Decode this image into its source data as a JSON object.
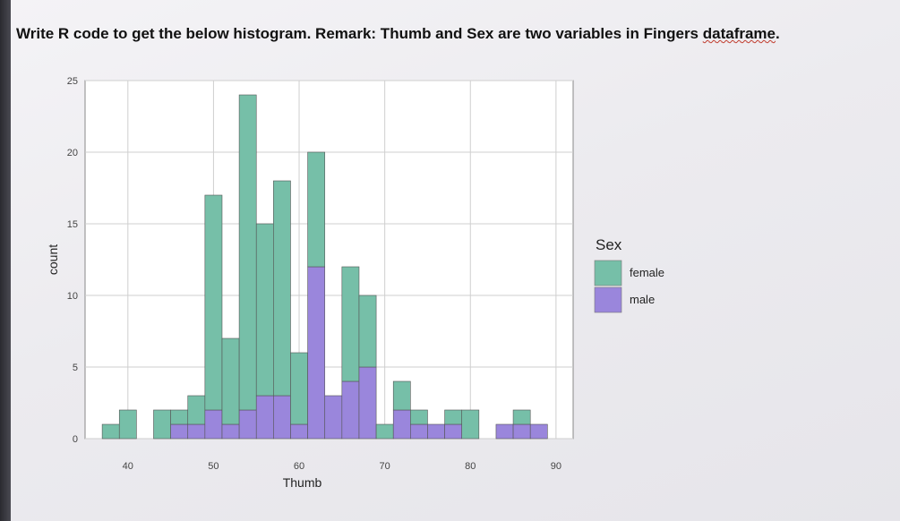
{
  "question": {
    "text_before": "Write R code to get the below histogram. Remark: Thumb and Sex are two variables in Fingers ",
    "text_flagged": "dataframe",
    "text_after": "."
  },
  "colors": {
    "female": "#76bfa8",
    "male": "#9a86dc",
    "panel": "#ffffff",
    "grid": "#cfcfcf"
  },
  "chart_data": {
    "type": "bar",
    "stacked": true,
    "xlabel": "Thumb",
    "ylabel": "count",
    "xlim": [
      35,
      92
    ],
    "ylim": [
      0,
      25
    ],
    "x_ticks": [
      40,
      50,
      60,
      70,
      80,
      90
    ],
    "y_ticks": [
      0,
      5,
      10,
      15,
      20,
      25
    ],
    "bin_width": 2,
    "bins": [
      38,
      40,
      44,
      46,
      48,
      50,
      52,
      54,
      56,
      58,
      60,
      62,
      64,
      66,
      68,
      70,
      72,
      74,
      76,
      78,
      80,
      84,
      86,
      88
    ],
    "series": [
      {
        "name": "female",
        "values": [
          1,
          2,
          2,
          1,
          2,
          15,
          6,
          22,
          12,
          15,
          5,
          8,
          0,
          8,
          5,
          1,
          2,
          1,
          0,
          1,
          2,
          0,
          1,
          0
        ]
      },
      {
        "name": "male",
        "values": [
          0,
          0,
          0,
          1,
          1,
          2,
          1,
          2,
          3,
          3,
          1,
          12,
          3,
          4,
          5,
          0,
          2,
          1,
          1,
          1,
          0,
          1,
          1,
          1
        ]
      }
    ],
    "legend": {
      "title": "Sex",
      "position": "right",
      "entries": [
        "female",
        "male"
      ]
    },
    "grid": true
  }
}
